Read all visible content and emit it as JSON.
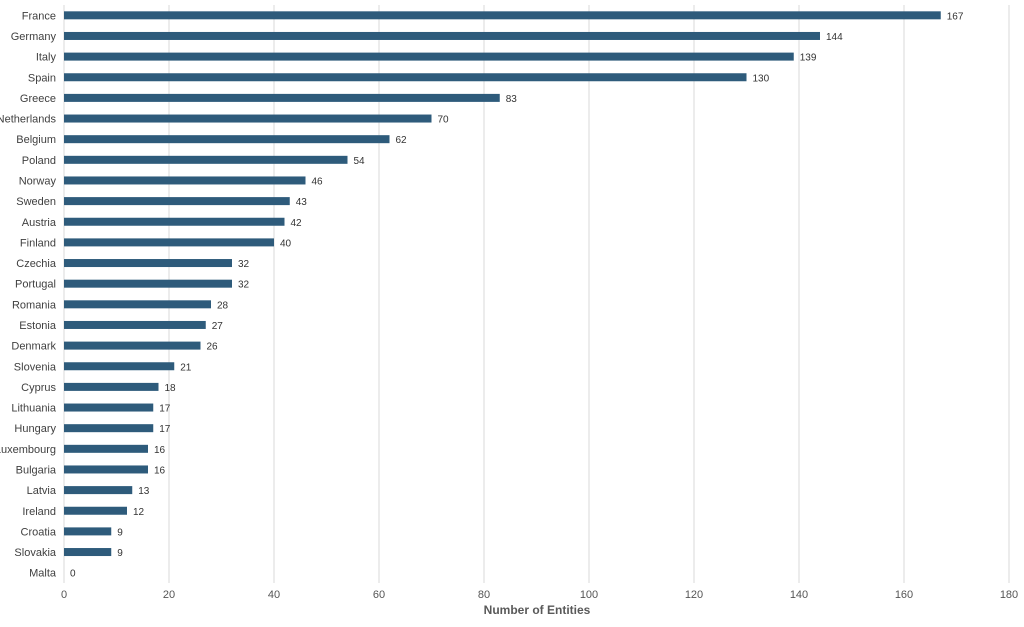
{
  "chart_data": {
    "type": "bar",
    "orientation": "horizontal",
    "categories": [
      "France",
      "Germany",
      "Italy",
      "Spain",
      "Greece",
      "Netherlands",
      "Belgium",
      "Poland",
      "Norway",
      "Sweden",
      "Austria",
      "Finland",
      "Czechia",
      "Portugal",
      "Romania",
      "Estonia",
      "Denmark",
      "Slovenia",
      "Cyprus",
      "Lithuania",
      "Hungary",
      "Luxembourg",
      "Bulgaria",
      "Latvia",
      "Ireland",
      "Croatia",
      "Slovakia",
      "Malta"
    ],
    "values": [
      167,
      144,
      139,
      130,
      83,
      70,
      62,
      54,
      46,
      43,
      42,
      40,
      32,
      32,
      28,
      27,
      26,
      21,
      18,
      17,
      17,
      16,
      16,
      13,
      12,
      9,
      9,
      0
    ],
    "title": "",
    "xlabel": "Number of Entities",
    "ylabel": "",
    "xlim": [
      0,
      180
    ],
    "xticks": [
      0,
      20,
      40,
      60,
      80,
      100,
      120,
      140,
      160,
      180
    ],
    "grid": "vertical",
    "legend": "none",
    "bar_color": "#2e5b7b",
    "grid_color": "#d9d9d9"
  }
}
